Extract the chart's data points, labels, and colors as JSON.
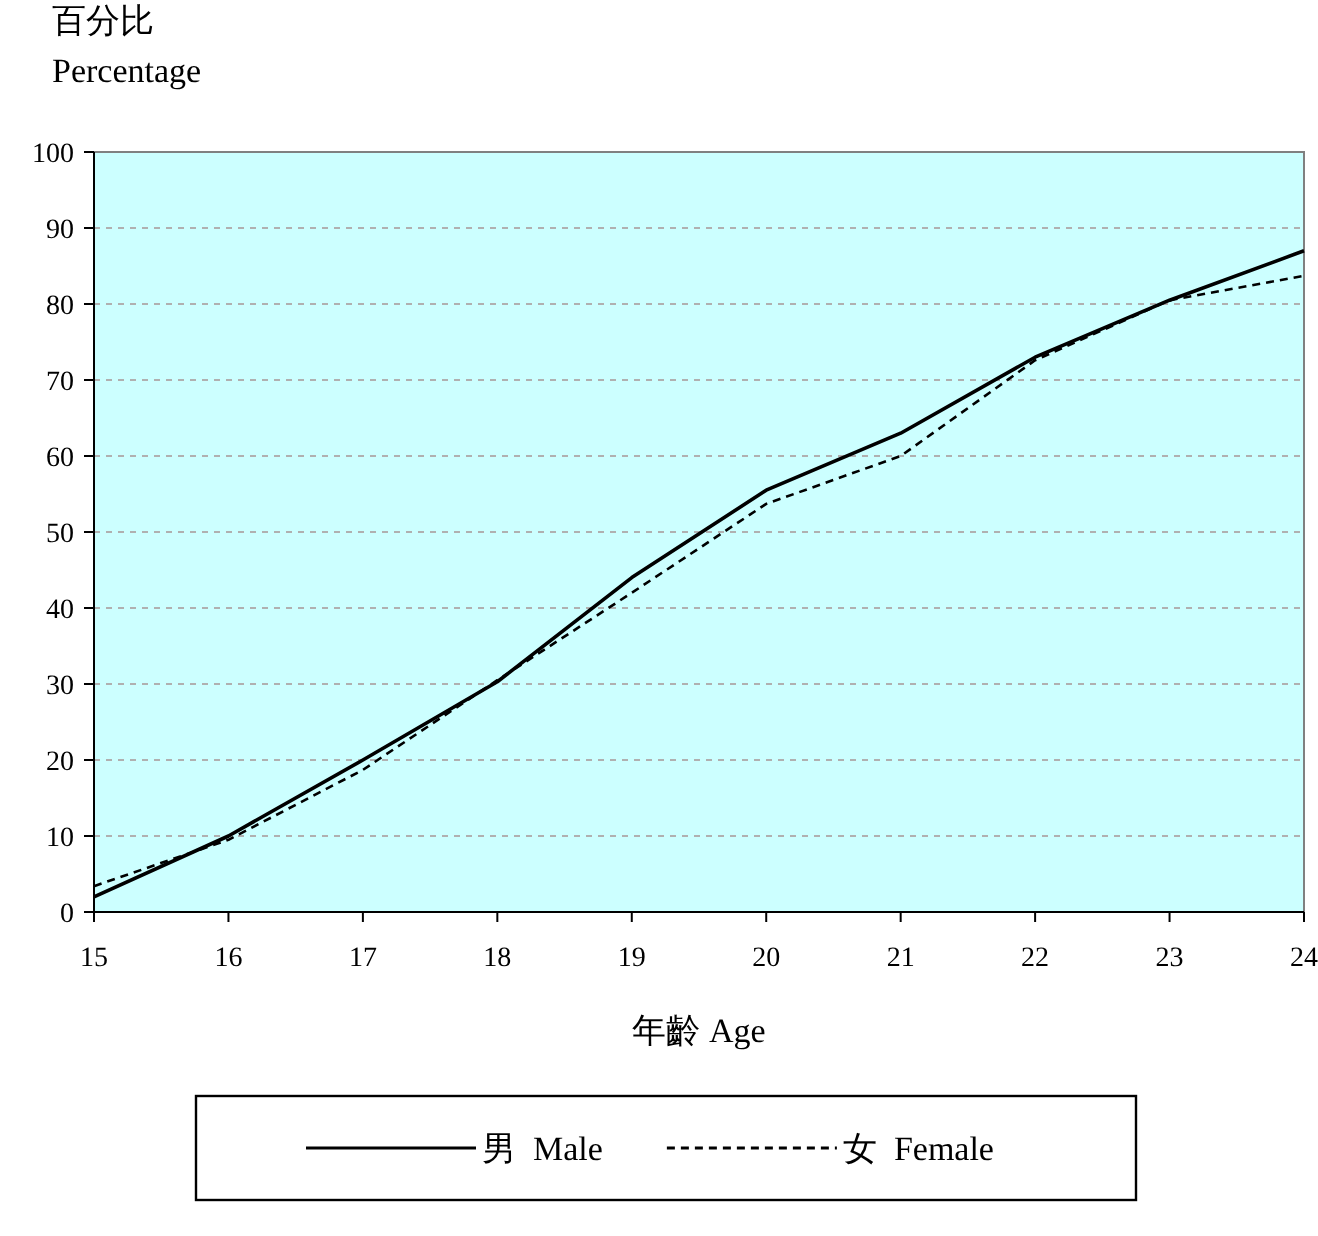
{
  "chart_data": {
    "type": "line",
    "xlabel": "年齡 Age",
    "ylabel": "百分比 Percentage",
    "x": [
      15,
      16,
      17,
      18,
      19,
      20,
      21,
      22,
      23,
      24
    ],
    "series": [
      {
        "name": "男  Male",
        "color": "#000000",
        "line_style": "solid",
        "values": [
          2,
          10,
          20,
          30.3,
          44,
          55.5,
          63,
          73,
          80.5,
          87
        ]
      },
      {
        "name": "女  Female",
        "color": "#000000",
        "line_style": "dashed",
        "values": [
          3.4,
          9.5,
          18.7,
          30.5,
          42,
          53.7,
          60,
          72.6,
          80.5,
          83.7
        ]
      }
    ],
    "xlim": [
      15,
      24
    ],
    "ylim": [
      0,
      100
    ],
    "xticks": [
      15,
      16,
      17,
      18,
      19,
      20,
      21,
      22,
      23,
      24
    ],
    "yticks": [
      0,
      10,
      20,
      30,
      40,
      50,
      60,
      70,
      80,
      90,
      100
    ],
    "grid": "y",
    "legend": "bottom"
  }
}
